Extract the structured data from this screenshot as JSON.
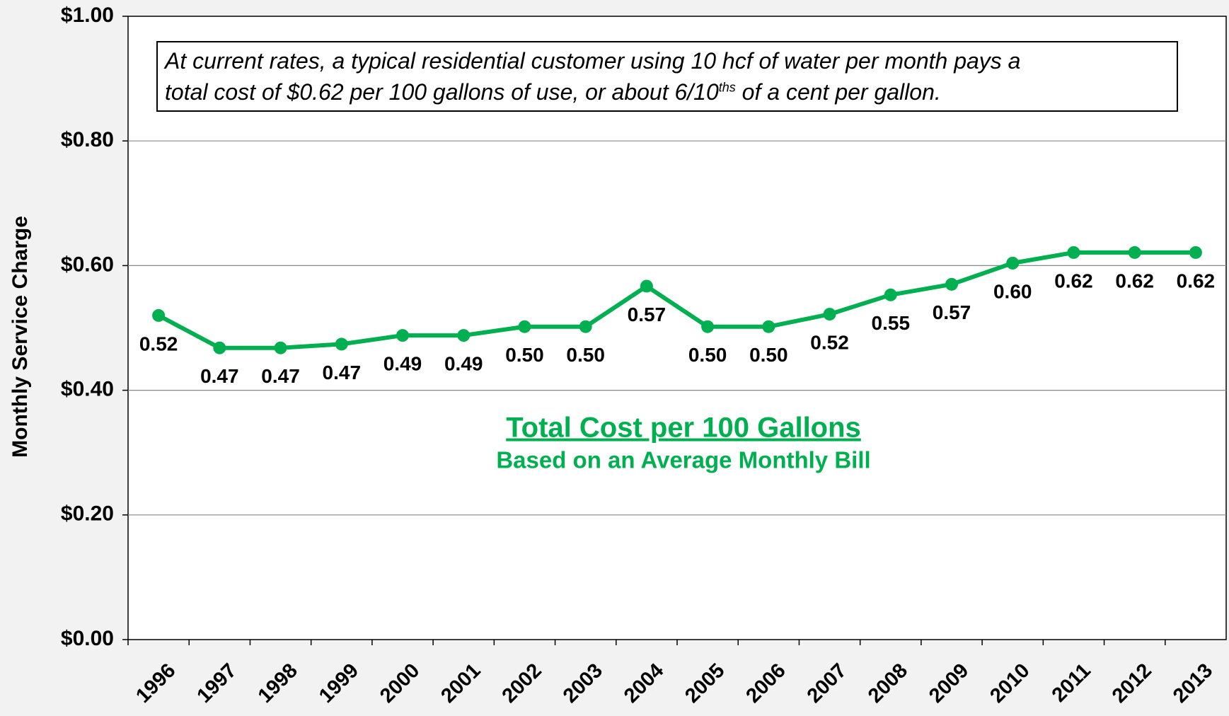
{
  "chart_data": {
    "type": "line",
    "subtitle": "Based on an Average Monthly Bill",
    "y_label": "Monthly Service Charge",
    "annotation": {
      "line1": "At current rates, a typical residential customer using 10 hcf of water per month pays a",
      "line2": "total cost of $0.62 per 100 gallons of use, or about 6/10",
      "superscript": "ths",
      "line2_end": " of a cent per gallon."
    },
    "categories": [
      "1996",
      "1997",
      "1998",
      "1999",
      "2000",
      "2001",
      "2002",
      "2003",
      "2004",
      "2005",
      "2006",
      "2007",
      "2008",
      "2009",
      "2010",
      "2011",
      "2012",
      "2013"
    ],
    "series": [
      {
        "name": "Total Cost per 100 Gallons",
        "color": "#00b050",
        "values": [
          0.52,
          0.468,
          0.468,
          0.474,
          0.488,
          0.488,
          0.502,
          0.502,
          0.567,
          0.502,
          0.502,
          0.522,
          0.553,
          0.57,
          0.604,
          0.621,
          0.621,
          0.621
        ],
        "value_labels": [
          "0.52",
          "0.47",
          "0.47",
          "0.47",
          "0.49",
          "0.49",
          "0.50",
          "0.50",
          "0.57",
          "0.50",
          "0.50",
          "0.52",
          "0.55",
          "0.57",
          "0.60",
          "0.62",
          "0.62",
          "0.62"
        ]
      }
    ],
    "ylim": [
      0,
      1
    ],
    "yticks": [
      {
        "value": 0,
        "label": "$0.00"
      },
      {
        "value": 0.2,
        "label": "$0.20"
      },
      {
        "value": 0.4,
        "label": "$0.40"
      },
      {
        "value": 0.6,
        "label": "$0.60"
      },
      {
        "value": 0.8,
        "label": "$0.80"
      },
      {
        "value": 1,
        "label": "$1.00"
      }
    ],
    "grid": true
  }
}
